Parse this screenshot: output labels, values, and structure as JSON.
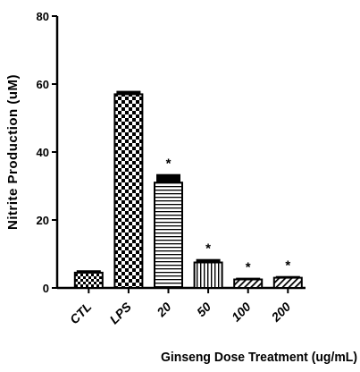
{
  "chart_data": {
    "type": "bar",
    "title": "",
    "xlabel": "Ginseng Dose Treatment (ug/mL)",
    "ylabel": "Nitrite Production (uM)",
    "ylim": [
      0,
      80
    ],
    "yticks": [
      0,
      20,
      40,
      60,
      80
    ],
    "categories": [
      "CTL",
      "LPS",
      "20",
      "50",
      "100",
      "200"
    ],
    "values": [
      4.5,
      57,
      31,
      7.5,
      2.5,
      3
    ],
    "errors": [
      0.7,
      1.0,
      2.5,
      1.0,
      0.5,
      0.5
    ],
    "significance": [
      "",
      "",
      "*",
      "*",
      "*",
      "*"
    ],
    "bar_patterns": [
      "dense-checker",
      "checker",
      "horizontal-lines",
      "vertical-lines",
      "diagonal-lines",
      "diagonal-lines"
    ],
    "grid": false,
    "legend": "none"
  }
}
